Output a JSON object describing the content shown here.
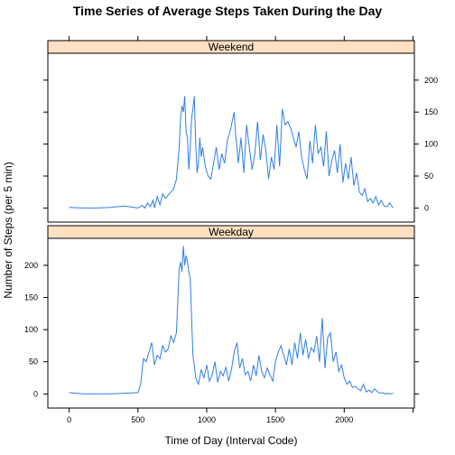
{
  "chart_data": {
    "type": "line",
    "title": "Time Series of Average Steps Taken During the Day",
    "xlabel": "Time of Day (Interval Code)",
    "ylabel": "Number of Steps (per 5 min)",
    "xlim": [
      -155,
      2510
    ],
    "ylim": [
      -22,
      242
    ],
    "x_ticks": [
      0,
      500,
      1000,
      1500,
      2000
    ],
    "y_ticks": [
      0,
      50,
      100,
      150,
      200
    ],
    "line_color": "#2f7fe6",
    "strip_color": "#ffe0c2",
    "panels": [
      {
        "name": "Weekend",
        "y_axis_side": "right",
        "x": [
          0,
          100,
          200,
          300,
          400,
          500,
          530,
          550,
          570,
          590,
          610,
          620,
          640,
          660,
          680,
          700,
          720,
          740,
          760,
          780,
          800,
          810,
          820,
          830,
          840,
          850,
          860,
          870,
          880,
          890,
          900,
          910,
          920,
          930,
          940,
          950,
          960,
          970,
          990,
          1010,
          1030,
          1050,
          1070,
          1090,
          1110,
          1130,
          1150,
          1170,
          1190,
          1200,
          1210,
          1220,
          1230,
          1250,
          1270,
          1290,
          1310,
          1330,
          1350,
          1370,
          1390,
          1410,
          1430,
          1450,
          1470,
          1490,
          1510,
          1530,
          1550,
          1570,
          1590,
          1610,
          1630,
          1650,
          1670,
          1690,
          1710,
          1730,
          1750,
          1770,
          1790,
          1810,
          1830,
          1850,
          1870,
          1890,
          1910,
          1930,
          1950,
          1970,
          1990,
          2010,
          2030,
          2050,
          2070,
          2090,
          2110,
          2130,
          2150,
          2170,
          2190,
          2210,
          2230,
          2250,
          2270,
          2290,
          2310,
          2330,
          2355
        ],
        "y": [
          1,
          0,
          0,
          1,
          3,
          0,
          4,
          0,
          8,
          2,
          12,
          0,
          18,
          5,
          22,
          15,
          20,
          25,
          30,
          45,
          95,
          140,
          160,
          150,
          175,
          120,
          110,
          60,
          95,
          140,
          155,
          175,
          100,
          55,
          70,
          110,
          80,
          95,
          65,
          50,
          45,
          70,
          95,
          60,
          85,
          70,
          105,
          120,
          140,
          150,
          115,
          95,
          70,
          110,
          55,
          130,
          95,
          60,
          85,
          135,
          75,
          115,
          90,
          45,
          80,
          60,
          130,
          65,
          155,
          130,
          135,
          125,
          110,
          95,
          120,
          80,
          60,
          45,
          105,
          70,
          130,
          85,
          95,
          65,
          120,
          50,
          75,
          90,
          55,
          100,
          40,
          70,
          45,
          80,
          35,
          55,
          25,
          20,
          30,
          10,
          15,
          8,
          18,
          5,
          12,
          3,
          2,
          8,
          0
        ]
      },
      {
        "name": "Weekday",
        "y_axis_side": "left",
        "x": [
          0,
          100,
          200,
          300,
          400,
          500,
          520,
          540,
          560,
          580,
          600,
          620,
          640,
          660,
          680,
          700,
          720,
          740,
          760,
          780,
          800,
          810,
          820,
          830,
          840,
          850,
          860,
          870,
          880,
          890,
          900,
          910,
          920,
          940,
          960,
          980,
          1000,
          1020,
          1040,
          1060,
          1080,
          1100,
          1120,
          1140,
          1160,
          1180,
          1200,
          1220,
          1240,
          1260,
          1280,
          1300,
          1320,
          1340,
          1360,
          1380,
          1400,
          1420,
          1440,
          1460,
          1480,
          1500,
          1520,
          1540,
          1560,
          1580,
          1600,
          1620,
          1640,
          1660,
          1680,
          1700,
          1720,
          1740,
          1760,
          1780,
          1800,
          1820,
          1840,
          1860,
          1880,
          1900,
          1920,
          1940,
          1960,
          1980,
          2000,
          2020,
          2040,
          2060,
          2080,
          2100,
          2120,
          2140,
          2160,
          2180,
          2200,
          2220,
          2240,
          2260,
          2280,
          2300,
          2320,
          2340,
          2355
        ],
        "y": [
          2,
          0,
          0,
          0,
          1,
          2,
          15,
          55,
          50,
          65,
          80,
          45,
          60,
          55,
          75,
          65,
          70,
          90,
          80,
          95,
          195,
          205,
          190,
          230,
          200,
          215,
          205,
          190,
          180,
          120,
          60,
          45,
          25,
          15,
          38,
          25,
          45,
          20,
          30,
          50,
          18,
          35,
          28,
          42,
          20,
          38,
          65,
          80,
          40,
          55,
          30,
          35,
          20,
          45,
          28,
          60,
          35,
          25,
          40,
          30,
          20,
          50,
          65,
          75,
          60,
          45,
          70,
          45,
          80,
          55,
          95,
          60,
          85,
          55,
          72,
          65,
          90,
          50,
          118,
          40,
          88,
          95,
          50,
          65,
          35,
          45,
          25,
          15,
          20,
          10,
          12,
          8,
          5,
          15,
          3,
          6,
          2,
          8,
          4,
          1,
          2,
          0,
          1,
          0,
          1
        ]
      }
    ]
  }
}
